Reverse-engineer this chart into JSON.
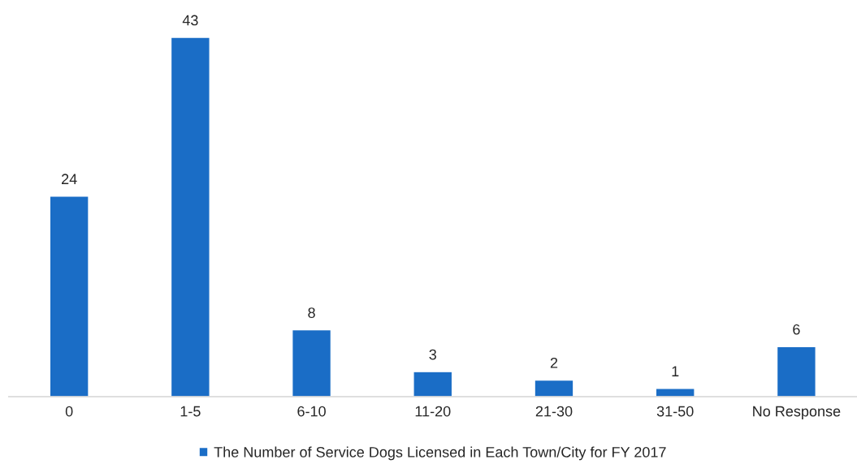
{
  "chart_data": {
    "type": "bar",
    "categories": [
      "0",
      "1-5",
      "6-10",
      "11-20",
      "21-30",
      "31-50",
      "No Response"
    ],
    "series": [
      {
        "name": "The Number of Service Dogs Licensed in Each Town/City for FY 2017",
        "color": "#1a6dc6",
        "values": [
          24,
          43,
          8,
          3,
          2,
          1,
          6
        ]
      }
    ],
    "data_labels": true,
    "legend": "bottom",
    "grid": false
  }
}
